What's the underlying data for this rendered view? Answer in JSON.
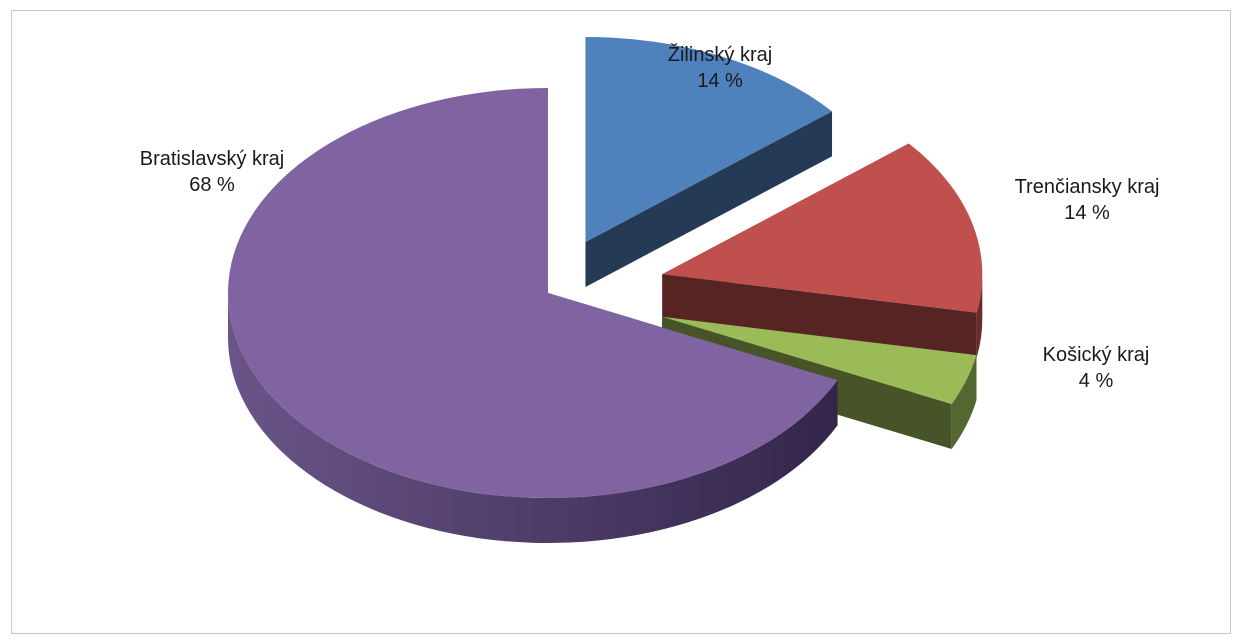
{
  "chart_data": {
    "type": "pie",
    "title": "",
    "labels": [
      "Žilinský kraj",
      "Trenčiansky kraj",
      "Košický kraj",
      "Bratislavský kraj"
    ],
    "values": [
      14,
      14,
      4,
      68
    ],
    "value_labels": [
      "14 %",
      "14 %",
      "4 %",
      "68 %"
    ],
    "colors": [
      "#4f81bd",
      "#c0504d",
      "#9bbb59",
      "#8064a2"
    ],
    "style": "3d-exploded",
    "legend": "none"
  }
}
